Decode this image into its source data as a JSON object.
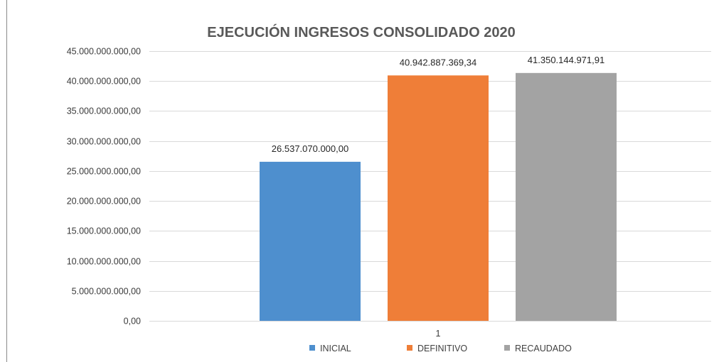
{
  "chart_data": {
    "type": "bar",
    "title": "EJECUCIÓN INGRESOS CONSOLIDADO 2020",
    "categories": [
      "1"
    ],
    "series": [
      {
        "name": "INICIAL",
        "values": [
          26537070000.0
        ],
        "label": "26.537.070.000,00",
        "color": "#4e8fce"
      },
      {
        "name": "DEFINITIVO",
        "values": [
          40942887369.34
        ],
        "label": "40.942.887.369,34",
        "color": "#ef7e38"
      },
      {
        "name": "RECAUDADO",
        "values": [
          41350144971.91
        ],
        "label": "41.350.144.971,91",
        "color": "#a3a3a3"
      }
    ],
    "ylim": [
      0,
      45000000000
    ],
    "yticks": [
      {
        "value": 0,
        "label": "0,00"
      },
      {
        "value": 5000000000,
        "label": "5.000.000.000,00"
      },
      {
        "value": 10000000000,
        "label": "10.000.000.000,00"
      },
      {
        "value": 15000000000,
        "label": "15.000.000.000,00"
      },
      {
        "value": 20000000000,
        "label": "20.000.000.000,00"
      },
      {
        "value": 25000000000,
        "label": "25.000.000.000,00"
      },
      {
        "value": 30000000000,
        "label": "30.000.000.000,00"
      },
      {
        "value": 35000000000,
        "label": "35.000.000.000,00"
      },
      {
        "value": 40000000000,
        "label": "40.000.000.000,00"
      },
      {
        "value": 45000000000,
        "label": "45.000.000.000,00"
      }
    ],
    "grid": true,
    "legend_position": "bottom",
    "gridline_color": "#d9d9d9"
  }
}
